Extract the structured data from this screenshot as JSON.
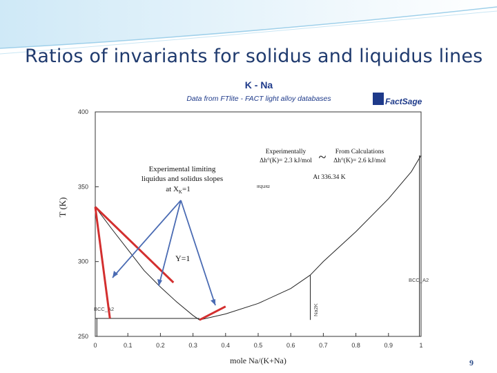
{
  "slide": {
    "title": "Ratios of invariants for solidus and liquidus lines",
    "page_number": "9"
  },
  "chart_data": {
    "type": "line",
    "title": "K - Na",
    "subtitle": "Data from FTlite - FACT light alloy databases",
    "logo_text": "FactSage",
    "xlabel": "mole Na/(K+Na)",
    "ylabel": "T (K)",
    "xlim": [
      0,
      1
    ],
    "ylim": [
      250,
      400
    ],
    "x_ticks": [
      {
        "v": 0,
        "label": "0"
      },
      {
        "v": 0.1,
        "label": "0.1"
      },
      {
        "v": 0.2,
        "label": "0.2"
      },
      {
        "v": 0.3,
        "label": "0.3"
      },
      {
        "v": 0.4,
        "label": "0.4"
      },
      {
        "v": 0.5,
        "label": "0.5"
      },
      {
        "v": 0.6,
        "label": "0.6"
      },
      {
        "v": 0.7,
        "label": "0.7"
      },
      {
        "v": 0.8,
        "label": "0.8"
      },
      {
        "v": 0.9,
        "label": "0.9"
      },
      {
        "v": 1.0,
        "label": "1"
      }
    ],
    "y_ticks": [
      {
        "v": 400,
        "label": "400"
      },
      {
        "v": 350,
        "label": "350"
      },
      {
        "v": 300,
        "label": "300"
      },
      {
        "v": 250,
        "label": "250"
      }
    ],
    "phase_labels": {
      "liquid": "liquid",
      "bcc_left": "BCC_A2",
      "bcc_right": "BCC_A2",
      "na2k": "Na2K"
    },
    "series": [
      {
        "name": "",
        "x": [
          0,
          0.05,
          0.1,
          0.15,
          0.2,
          0.25,
          0.3,
          0.32
        ],
        "y": [
          336.5,
          322,
          308,
          294,
          283,
          273,
          264,
          261
        ]
      },
      {
        "name": "",
        "x": [
          0.32,
          0.4,
          0.5,
          0.6,
          0.66
        ],
        "y": [
          261,
          265,
          272,
          282,
          291
        ]
      },
      {
        "name": "",
        "x": [
          0.66,
          0.7,
          0.8,
          0.9,
          0.97,
          1.0
        ],
        "y": [
          291,
          300,
          320,
          342,
          360,
          371
        ]
      },
      {
        "name": "",
        "x": [
          0.66,
          0.66
        ],
        "y": [
          291,
          261
        ]
      },
      {
        "name": "",
        "x": [
          0.0,
          0.32
        ],
        "y": [
          262,
          262
        ]
      }
    ],
    "red_slopes": [
      {
        "x": [
          0,
          0.24
        ],
        "y": [
          336.5,
          286
        ]
      },
      {
        "x": [
          0.32,
          0.4
        ],
        "y": [
          261,
          270
        ]
      }
    ]
  },
  "annotations": {
    "experimental_label": "Experimental limiting liquidus and solidus slopes at XK=1",
    "experimental_lines": [
      "Experimental limiting",
      "liquidus and solidus slopes",
      "at X"
    ],
    "experimental_sub": "K",
    "experimental_tail": "=1",
    "y_label": "Y=1",
    "tilde": "~",
    "experimentally_label": "Experimentally",
    "experimental_value": "Δh°(K)= 2.3 kJ/mol",
    "calc_label": "From Calculations",
    "calc_value": "Δh°(K)= 2.6 kJ/mol",
    "at_temp": "At 336.34 K"
  },
  "colors": {
    "title": "#1f3a6e",
    "chart_title": "#1e3a8a",
    "red": "#d32f2f",
    "arrow": "#4a6bb3",
    "axis": "#333333"
  }
}
